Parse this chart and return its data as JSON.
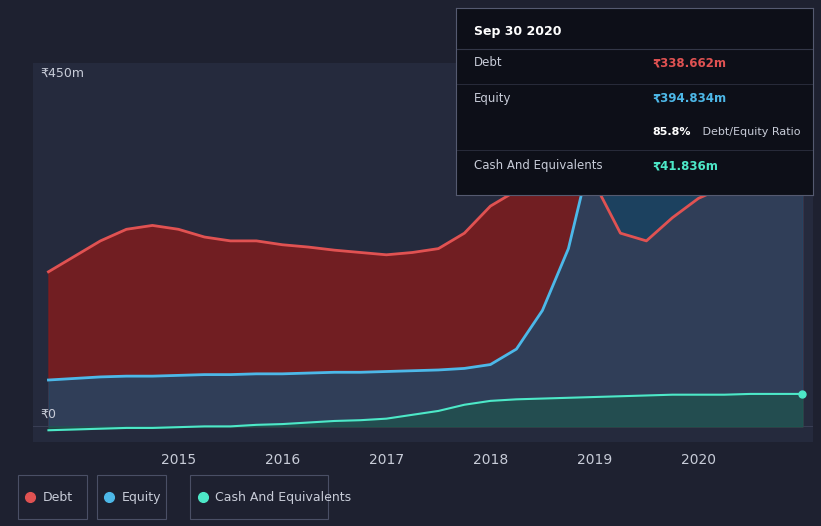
{
  "bg_color": "#1e2130",
  "plot_bg_color": "#252a3d",
  "grid_color": "#3a3f55",
  "title_box": {
    "date": "Sep 30 2020",
    "debt_label": "Debt",
    "debt_value": "₹338.662m",
    "equity_label": "Equity",
    "equity_value": "₹394.834m",
    "ratio_text": "85.8% Debt/Equity Ratio",
    "cash_label": "Cash And Equivalents",
    "cash_value": "₹41.836m",
    "debt_color": "#e05252",
    "equity_color": "#4db8e8",
    "cash_color": "#4de8c8",
    "box_bg": "#0d0f18",
    "text_color": "#c8ccd8",
    "title_color": "#ffffff"
  },
  "ylabel_top": "₹450m",
  "ylabel_zero": "₹0",
  "x_years": [
    2013.75,
    2014.0,
    2014.25,
    2014.5,
    2014.75,
    2015.0,
    2015.25,
    2015.5,
    2015.75,
    2016.0,
    2016.25,
    2016.5,
    2016.75,
    2017.0,
    2017.25,
    2017.5,
    2017.75,
    2018.0,
    2018.25,
    2018.5,
    2018.75,
    2019.0,
    2019.25,
    2019.5,
    2019.75,
    2020.0,
    2020.25,
    2020.5,
    2020.75,
    2021.0
  ],
  "debt": [
    200,
    220,
    240,
    255,
    260,
    255,
    245,
    240,
    240,
    235,
    232,
    228,
    225,
    222,
    225,
    230,
    250,
    285,
    305,
    315,
    320,
    315,
    250,
    240,
    270,
    295,
    310,
    325,
    335,
    338
  ],
  "equity": [
    60,
    62,
    64,
    65,
    65,
    66,
    67,
    67,
    68,
    68,
    69,
    70,
    70,
    71,
    72,
    73,
    75,
    80,
    100,
    150,
    230,
    370,
    395,
    390,
    380,
    375,
    385,
    390,
    392,
    395
  ],
  "cash": [
    -5,
    -4,
    -3,
    -2,
    -2,
    -1,
    0,
    0,
    2,
    3,
    5,
    7,
    8,
    10,
    15,
    20,
    28,
    33,
    35,
    36,
    37,
    38,
    39,
    40,
    41,
    41,
    41,
    42,
    42,
    42
  ],
  "debt_line_color": "#e05252",
  "equity_line_color": "#4db8e8",
  "cash_line_color": "#4de8c8",
  "debt_fill_color": "#8b1a1a",
  "equity_fill_color": "#1a4a6b",
  "cash_fill_color": "#1a5a4a",
  "debt_fill_alpha": 0.75,
  "equity_fill_alpha": 0.75,
  "cash_fill_alpha": 0.55,
  "ylim": [
    -20,
    470
  ],
  "xlim": [
    2013.6,
    2021.1
  ],
  "xticks": [
    2015,
    2016,
    2017,
    2018,
    2019,
    2020
  ],
  "xtick_labels": [
    "2015",
    "2016",
    "2017",
    "2018",
    "2019",
    "2020"
  ],
  "legend_items": [
    {
      "label": "Debt",
      "color": "#e05252"
    },
    {
      "label": "Equity",
      "color": "#4db8e8"
    },
    {
      "label": "Cash And Equivalents",
      "color": "#4de8c8"
    }
  ],
  "legend_edge": "#4a4f65"
}
